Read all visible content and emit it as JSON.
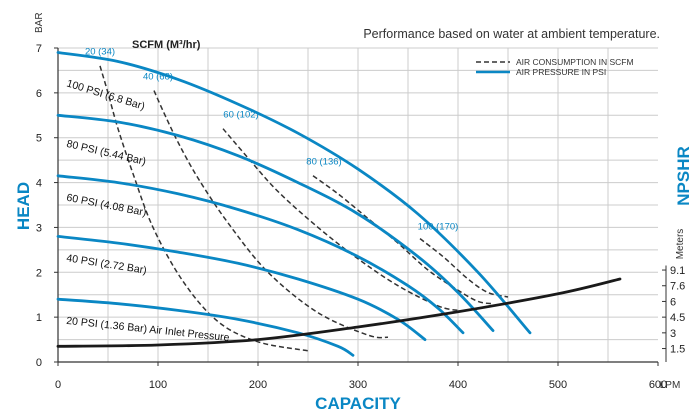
{
  "chart_data": {
    "type": "line",
    "title": "Performance based on water at ambient temperature.",
    "xlabel": "CAPACITY",
    "x_unit": "LPM",
    "ylabel_left": "HEAD",
    "y_unit_left": "BAR",
    "ylabel_right": "NPSHR",
    "y_unit_right": "Meters",
    "xlim": [
      0,
      600
    ],
    "ylim": [
      0,
      7
    ],
    "x_ticks": [
      "0",
      "100",
      "200",
      "300",
      "400",
      "500",
      "600"
    ],
    "y_ticks": [
      "0",
      "1",
      "2",
      "3",
      "4",
      "5",
      "6",
      "7"
    ],
    "right_ticks": [
      {
        "label": "1.5",
        "y": 0.3
      },
      {
        "label": "3",
        "y": 0.65
      },
      {
        "label": "4.5",
        "y": 1.0
      },
      {
        "label": "6",
        "y": 1.35
      },
      {
        "label": "7.6",
        "y": 1.7
      },
      {
        "label": "9.1",
        "y": 2.05
      }
    ],
    "grid": true,
    "legend_position": "top-right",
    "legend": [
      {
        "label": "AIR CONSUMPTION IN SCFM",
        "style": "dashed"
      },
      {
        "label": "AIR PRESSURE IN PSI",
        "style": "solid"
      }
    ],
    "scfm_axis_label": "SCFM (M³/hr)",
    "colors": {
      "pressure": "#0a87c4",
      "consumption": "#333333",
      "npshr": "#1a1a1a",
      "label_blue": "#0a87c4",
      "grid": "#cccccc"
    },
    "pressure_curves": [
      {
        "name": "100 PSI (6.8 Bar)",
        "x": [
          0,
          60,
          120,
          180,
          240,
          300,
          360,
          420,
          472
        ],
        "y": [
          6.9,
          6.7,
          6.3,
          5.75,
          5.1,
          4.3,
          3.3,
          2.0,
          0.65
        ]
      },
      {
        "name": "80 PSI (5.44 Bar)",
        "x": [
          0,
          60,
          120,
          180,
          240,
          300,
          360,
          400,
          435
        ],
        "y": [
          5.5,
          5.35,
          5.05,
          4.6,
          4.0,
          3.3,
          2.35,
          1.55,
          0.7
        ]
      },
      {
        "name": "60 PSI (4.08 Bar)",
        "x": [
          0,
          60,
          120,
          180,
          240,
          300,
          350,
          380,
          405
        ],
        "y": [
          4.15,
          4.0,
          3.75,
          3.4,
          2.95,
          2.35,
          1.7,
          1.2,
          0.65
        ]
      },
      {
        "name": "40 PSI (2.72 Bar)",
        "x": [
          0,
          60,
          120,
          180,
          240,
          300,
          340,
          367
        ],
        "y": [
          2.8,
          2.65,
          2.45,
          2.2,
          1.85,
          1.4,
          0.95,
          0.5
        ]
      },
      {
        "name": "20 PSI (1.36 Bar) Air Inlet Pressure",
        "x": [
          0,
          60,
          120,
          180,
          240,
          280,
          295
        ],
        "y": [
          1.4,
          1.3,
          1.15,
          0.95,
          0.65,
          0.35,
          0.15
        ]
      }
    ],
    "consumption_curves": [
      {
        "name": "20 (34)",
        "x": [
          42,
          50,
          60,
          75,
          95,
          125,
          160,
          200,
          250
        ],
        "y": [
          6.6,
          6.0,
          5.2,
          4.2,
          3.0,
          1.8,
          0.9,
          0.45,
          0.25
        ]
      },
      {
        "name": "40 (68)",
        "x": [
          96,
          105,
          120,
          140,
          170,
          210,
          260,
          310,
          330
        ],
        "y": [
          6.05,
          5.6,
          4.9,
          4.1,
          3.1,
          2.0,
          1.1,
          0.6,
          0.55
        ]
      },
      {
        "name": "60 (102)",
        "x": [
          165,
          190,
          220,
          260,
          300,
          340,
          380,
          400
        ],
        "y": [
          5.2,
          4.55,
          3.8,
          3.0,
          2.3,
          1.7,
          1.25,
          1.15
        ]
      },
      {
        "name": "80 (136)",
        "x": [
          255,
          280,
          310,
          340,
          370,
          400,
          420,
          435
        ],
        "y": [
          4.15,
          3.75,
          3.2,
          2.65,
          2.05,
          1.6,
          1.35,
          1.3
        ]
      },
      {
        "name": "100 (170)",
        "x": [
          362,
          385,
          410,
          430,
          450
        ],
        "y": [
          2.75,
          2.35,
          1.85,
          1.55,
          1.45
        ]
      }
    ],
    "npshr_curve": {
      "x": [
        0,
        100,
        200,
        300,
        400,
        500,
        562
      ],
      "y": [
        0.35,
        0.38,
        0.5,
        0.78,
        1.12,
        1.52,
        1.85
      ]
    },
    "scfm_labels": [
      {
        "text": "20 (34)",
        "x": 42,
        "y": 6.85
      },
      {
        "text": "40 (68)",
        "x": 100,
        "y": 6.3
      },
      {
        "text": "60 (102)",
        "x": 183,
        "y": 5.45
      },
      {
        "text": "80 (136)",
        "x": 266,
        "y": 4.4
      },
      {
        "text": "100 (170)",
        "x": 380,
        "y": 2.95
      }
    ],
    "curve_labels": [
      {
        "text": "100 PSI (6.8 Bar)",
        "x": 8,
        "y": 6.15,
        "angle": 17
      },
      {
        "text": "80 PSI (5.44 Bar)",
        "x": 8,
        "y": 4.8,
        "angle": 13
      },
      {
        "text": "60 PSI (4.08 Bar)",
        "x": 8,
        "y": 3.6,
        "angle": 11
      },
      {
        "text": "40 PSI (2.72 Bar)",
        "x": 8,
        "y": 2.25,
        "angle": 9
      },
      {
        "text": "20 PSI (1.36 Bar) Air Inlet Pressure",
        "x": 8,
        "y": 0.85,
        "angle": 6
      }
    ]
  }
}
